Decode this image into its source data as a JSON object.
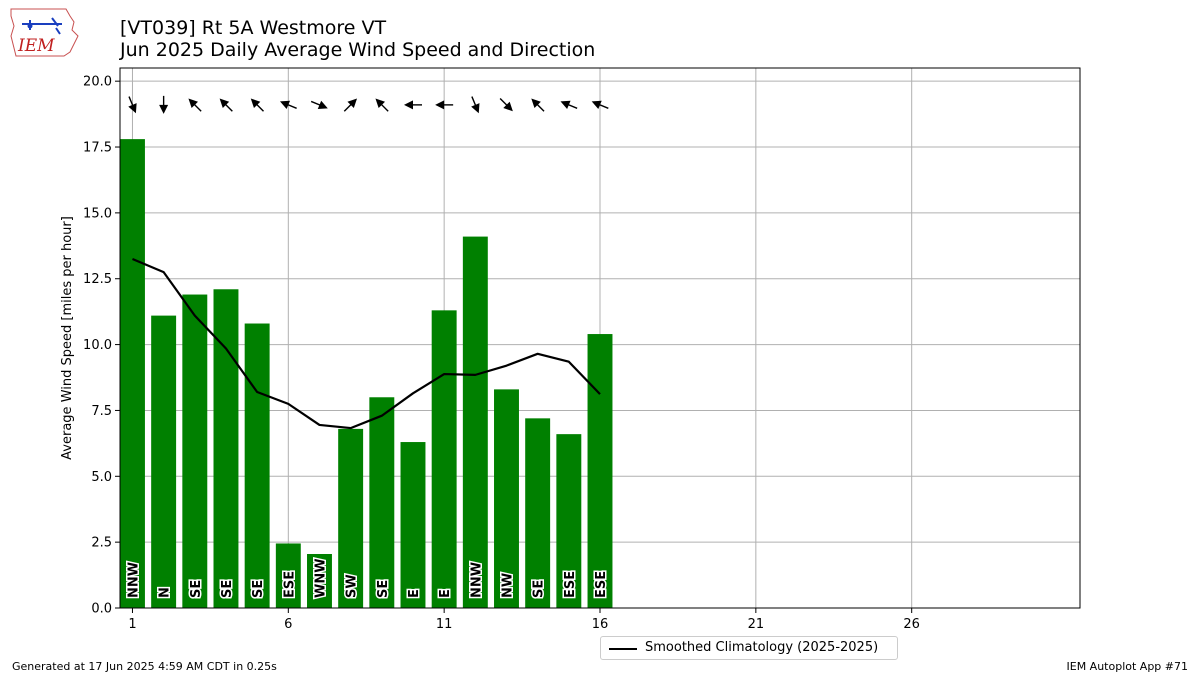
{
  "header": {
    "title_line1": "[VT039] Rt 5A Westmore  VT",
    "title_line2": "Jun 2025 Daily Average Wind Speed and Direction"
  },
  "logo": {
    "text": "IEM"
  },
  "footer": {
    "generated": "Generated at 17 Jun 2025 4:59 AM CDT in 0.25s",
    "app": "IEM Autoplot App #71"
  },
  "legend": {
    "label": "Smoothed Climatology (2025-2025)"
  },
  "chart_data": {
    "type": "bar",
    "ylabel": "Average Wind Speed [miles per hour]",
    "xlim": [
      0.6,
      31.4
    ],
    "ylim": [
      0,
      20.5
    ],
    "xticks": [
      1,
      6,
      11,
      16,
      21,
      26
    ],
    "yticks": [
      0.0,
      2.5,
      5.0,
      7.5,
      10.0,
      12.5,
      15.0,
      17.5,
      20.0
    ],
    "grid": true,
    "legend_position": "bottom-center",
    "bar_color": "#008000",
    "days": [
      1,
      2,
      3,
      4,
      5,
      6,
      7,
      8,
      9,
      10,
      11,
      12,
      13,
      14,
      15,
      16
    ],
    "wind_speed": [
      17.8,
      11.1,
      11.9,
      12.1,
      10.8,
      2.45,
      2.05,
      6.8,
      8.0,
      6.3,
      11.3,
      14.1,
      8.3,
      7.2,
      6.6,
      10.4
    ],
    "direction_labels": [
      "NNW",
      "N",
      "SE",
      "SE",
      "SE",
      "ESE",
      "WNW",
      "SW",
      "SE",
      "E",
      "E",
      "NNW",
      "NW",
      "SE",
      "ESE",
      "ESE"
    ],
    "wind_direction_deg": [
      337.5,
      0,
      135,
      135,
      135,
      112.5,
      292.5,
      225,
      135,
      90,
      90,
      337.5,
      315,
      135,
      112.5,
      112.5
    ],
    "climatology": {
      "name": "Smoothed Climatology (2025-2025)",
      "color": "#000000",
      "days": [
        1,
        2,
        3,
        4,
        5,
        6,
        7,
        8,
        9,
        10,
        11,
        12,
        13,
        14,
        15,
        16
      ],
      "values": [
        13.25,
        12.75,
        11.1,
        9.85,
        8.2,
        7.75,
        6.95,
        6.83,
        7.3,
        8.15,
        8.88,
        8.85,
        9.2,
        9.65,
        9.35,
        8.12
      ]
    }
  }
}
